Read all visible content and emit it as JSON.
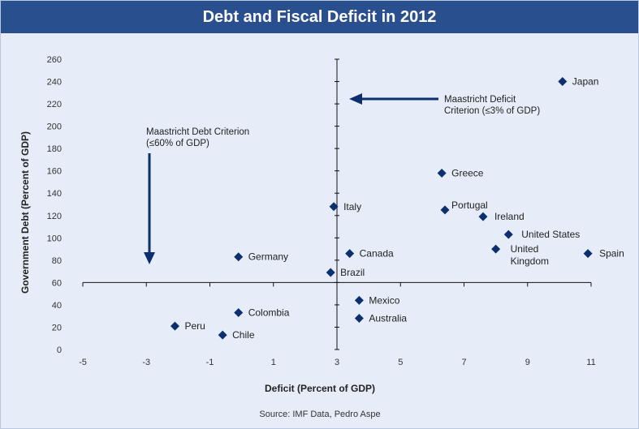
{
  "chart_data": {
    "type": "scatter",
    "title": "Debt and Fiscal Deficit in 2012",
    "xlabel": "Deficit (Percent of GDP)",
    "ylabel": "Government Debt (Percent of GDP)",
    "xlim": [
      -5,
      11
    ],
    "ylim": [
      0,
      260
    ],
    "xticks": [
      -5,
      -3,
      -1,
      1,
      3,
      5,
      7,
      9,
      11
    ],
    "yticks": [
      0,
      20,
      40,
      60,
      80,
      100,
      120,
      140,
      160,
      180,
      200,
      220,
      240,
      260
    ],
    "reference_lines": {
      "x": 3,
      "y": 60
    },
    "marker_color": "#0d2f6e",
    "points": [
      {
        "label": "Japan",
        "x": 10.1,
        "y": 240
      },
      {
        "label": "Greece",
        "x": 6.3,
        "y": 158
      },
      {
        "label": "Italy",
        "x": 2.9,
        "y": 128
      },
      {
        "label": "Portugal",
        "x": 6.4,
        "y": 125
      },
      {
        "label": "Ireland",
        "x": 7.6,
        "y": 119
      },
      {
        "label": "United States",
        "x": 8.4,
        "y": 103
      },
      {
        "label": "United Kingdom",
        "x": 8.0,
        "y": 90
      },
      {
        "label": "Spain",
        "x": 10.9,
        "y": 86
      },
      {
        "label": "Germany",
        "x": -0.1,
        "y": 83
      },
      {
        "label": "Canada",
        "x": 3.4,
        "y": 86
      },
      {
        "label": "Brazil",
        "x": 2.8,
        "y": 69
      },
      {
        "label": "Mexico",
        "x": 3.7,
        "y": 44
      },
      {
        "label": "Australia",
        "x": 3.7,
        "y": 28
      },
      {
        "label": "Colombia",
        "x": -0.1,
        "y": 33
      },
      {
        "label": "Peru",
        "x": -2.1,
        "y": 21
      },
      {
        "label": "Chile",
        "x": -0.6,
        "y": 13
      }
    ],
    "annotations": [
      {
        "lines": [
          "Maastricht Debt Criterion",
          "(≤60% of GDP)"
        ]
      },
      {
        "lines": [
          "Maastricht Deficit",
          "Criterion (≤3% of GDP)"
        ]
      }
    ],
    "source": "Source: IMF Data, Pedro Aspe"
  }
}
